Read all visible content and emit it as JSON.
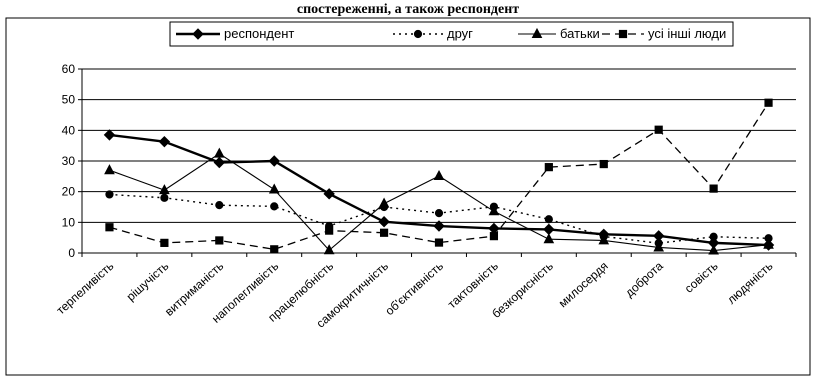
{
  "header": {
    "partial_title": "спостереженні, а також респондент"
  },
  "chart_data": {
    "type": "line",
    "categories": [
      "терпеливість",
      "рішучість",
      "витриманість",
      "наполегливість",
      "працелюбність",
      "самокритичність",
      "об'єктивність",
      "тактовність",
      "безкорисність",
      "милосердя",
      "доброта",
      "совість",
      "людяність"
    ],
    "ylim": [
      0,
      60
    ],
    "yticks": [
      0,
      10,
      20,
      30,
      40,
      50,
      60
    ],
    "grid": true,
    "legend_position": "top",
    "series": [
      {
        "name": "респондент",
        "marker": "diamond",
        "dash": "solid",
        "width": 2.4,
        "values": [
          38.5,
          36.3,
          29.5,
          30.0,
          19.3,
          10.2,
          8.8,
          8.0,
          7.7,
          6.1,
          5.6,
          3.3,
          2.6
        ]
      },
      {
        "name": "друг",
        "marker": "circle",
        "dash": "dotted",
        "width": 1.4,
        "values": [
          19.1,
          18.0,
          15.6,
          15.2,
          8.8,
          15.0,
          13.0,
          15.1,
          11.0,
          5.4,
          3.2,
          5.3,
          4.8
        ]
      },
      {
        "name": "батьки",
        "marker": "triangle",
        "dash": "solid",
        "width": 1.1,
        "values": [
          27.0,
          20.5,
          32.4,
          20.7,
          0.9,
          16.1,
          25.1,
          13.6,
          4.5,
          4.1,
          1.8,
          0.8,
          2.7
        ]
      },
      {
        "name": "усі інші люди",
        "marker": "square",
        "dash": "dashed",
        "width": 1.3,
        "values": [
          8.4,
          3.3,
          4.1,
          1.2,
          7.3,
          6.6,
          3.4,
          5.5,
          28.0,
          29.0,
          40.2,
          21.0,
          49.0
        ]
      }
    ]
  }
}
